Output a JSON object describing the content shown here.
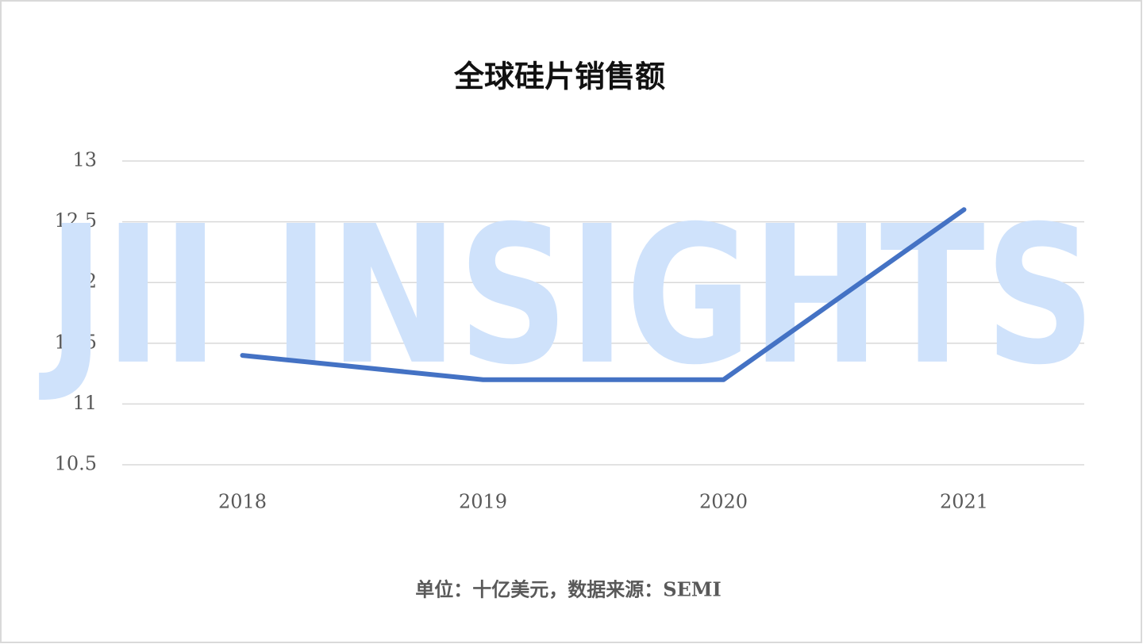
{
  "chart_data": {
    "type": "line",
    "title": "全球硅片销售额",
    "categories": [
      "2018",
      "2019",
      "2020",
      "2021"
    ],
    "series": [
      {
        "name": "全球硅片销售额",
        "color": "#4472c4",
        "values": [
          11.4,
          11.2,
          11.2,
          12.6
        ]
      }
    ],
    "ylim": [
      10.5,
      13
    ],
    "yticks": [
      10.5,
      11,
      11.5,
      12,
      12.5,
      13
    ],
    "grid": true,
    "note": "单位：十亿美元，数据来源：SEMI",
    "watermark": "JII INSIGHTS"
  }
}
